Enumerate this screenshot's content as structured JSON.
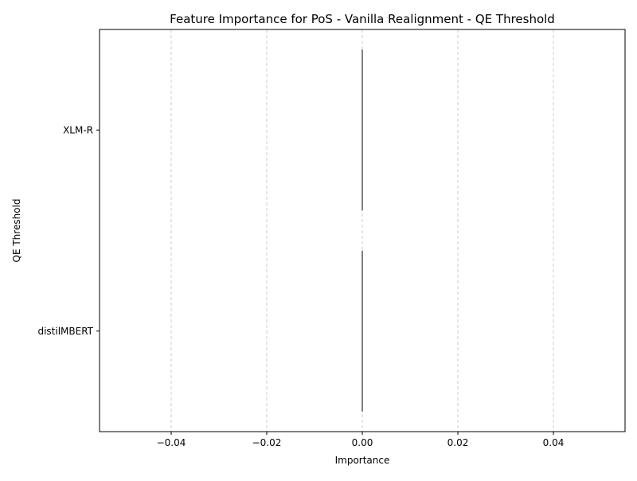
{
  "chart_data": {
    "type": "bar",
    "orientation": "horizontal",
    "title": "Feature Importance for PoS - Vanilla Realignment - QE Threshold",
    "xlabel": "Importance",
    "ylabel": "QE Threshold",
    "categories": [
      "XLM-R",
      "distilMBERT"
    ],
    "values": [
      0.0,
      0.0
    ],
    "xlim": [
      -0.055,
      0.055
    ],
    "xticks": [
      -0.04,
      -0.02,
      0.0,
      0.02,
      0.04
    ],
    "xtick_labels": [
      "−0.04",
      "−0.02",
      "0.00",
      "0.02",
      "0.04"
    ],
    "grid": "x-axis dashed",
    "colors": {
      "bar_edge": "#000000",
      "grid": "#cccccc",
      "axis": "#000000"
    }
  }
}
